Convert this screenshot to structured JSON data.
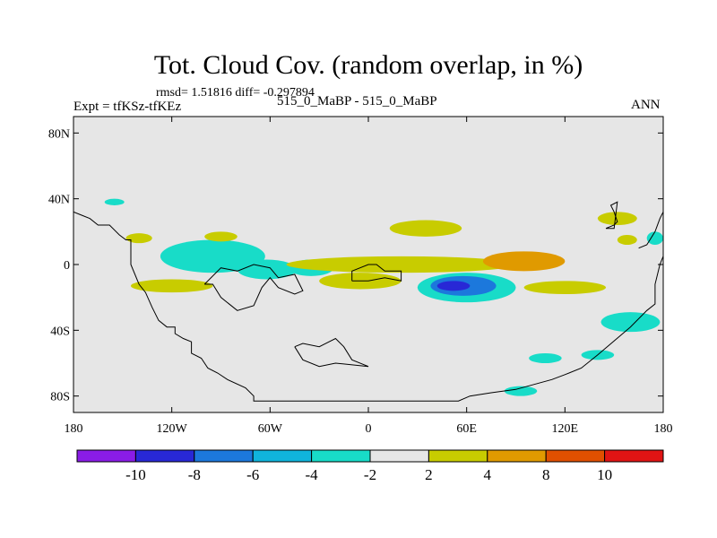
{
  "chart_data": {
    "type": "heatmap",
    "title": "Tot. Cloud Cov. (random overlap, in %)",
    "stats_text": "rmsd= 1.51816 diff= -0.297894",
    "left_label": "Expt = tfKSz-tfKEz",
    "center_label": "515_0_MaBP - 515_0_MaBP",
    "right_label": "ANN",
    "xlim": [
      -180,
      180
    ],
    "ylim": [
      -90,
      90
    ],
    "x_ticks": [
      {
        "value": -180,
        "label": "180"
      },
      {
        "value": -120,
        "label": "120W"
      },
      {
        "value": -60,
        "label": "60W"
      },
      {
        "value": 0,
        "label": "0"
      },
      {
        "value": 60,
        "label": "60E"
      },
      {
        "value": 120,
        "label": "120E"
      },
      {
        "value": 180,
        "label": "180"
      }
    ],
    "y_ticks": [
      {
        "value": 80,
        "label": "80N"
      },
      {
        "value": 40,
        "label": "40N"
      },
      {
        "value": 0,
        "label": "0"
      },
      {
        "value": -40,
        "label": "40S"
      },
      {
        "value": -80,
        "label": "80S"
      }
    ],
    "background_color": "#e6e6e6",
    "colorbar": {
      "colors": [
        "#8a1ce6",
        "#2828d6",
        "#1c78dc",
        "#10b4dc",
        "#18dcc8",
        "#e6e6e6",
        "#c8cc00",
        "#e09a00",
        "#e05000",
        "#e01414"
      ],
      "labels": [
        "-10",
        "-8",
        "-6",
        "-4",
        "-2",
        "2",
        "4",
        "8",
        "10"
      ]
    },
    "features": [
      {
        "name": "east-pacific-negative",
        "level": -3,
        "lon": -95,
        "lat": 5,
        "rx": 32,
        "ry": 10
      },
      {
        "name": "east-pacific-negative-tail",
        "level": -3,
        "lon": -62,
        "lat": -3,
        "rx": 18,
        "ry": 6
      },
      {
        "name": "central-atlantic-negative",
        "level": -3,
        "lon": -35,
        "lat": -2,
        "rx": 14,
        "ry": 5
      },
      {
        "name": "indian-ocean-negative",
        "level": -3,
        "lon": 60,
        "lat": -14,
        "rx": 30,
        "ry": 9
      },
      {
        "name": "indian-ocean-negative-core",
        "level": -5,
        "lon": 58,
        "lat": -13,
        "rx": 20,
        "ry": 6
      },
      {
        "name": "indian-ocean-negative-peak",
        "level": -7,
        "lon": 52,
        "lat": -13,
        "rx": 10,
        "ry": 3
      },
      {
        "name": "nw-pacific-negative",
        "level": -3,
        "lon": -155,
        "lat": 38,
        "rx": 6,
        "ry": 2
      },
      {
        "name": "north-atlantic-positive",
        "level": 3,
        "lon": 35,
        "lat": 22,
        "rx": 22,
        "ry": 5
      },
      {
        "name": "east-pacific-positive",
        "level": 3,
        "lon": -140,
        "lat": 16,
        "rx": 8,
        "ry": 3
      },
      {
        "name": "mid-pacific-positive",
        "level": 3,
        "lon": -90,
        "lat": 17,
        "rx": 10,
        "ry": 3
      },
      {
        "name": "eq-band-positive",
        "level": 3,
        "lon": 20,
        "lat": 0,
        "rx": 70,
        "ry": 5
      },
      {
        "name": "eq-south-positive",
        "level": 3,
        "lon": -120,
        "lat": -13,
        "rx": 25,
        "ry": 4
      },
      {
        "name": "african-positive",
        "level": 3,
        "lon": -5,
        "lat": -10,
        "rx": 25,
        "ry": 5
      },
      {
        "name": "arabian-positive",
        "level": 6,
        "lon": 95,
        "lat": 2,
        "rx": 25,
        "ry": 6
      },
      {
        "name": "indian-ocean-positive",
        "level": 3,
        "lon": 120,
        "lat": -14,
        "rx": 25,
        "ry": 4
      },
      {
        "name": "west-pacific-positive",
        "level": 3,
        "lon": 152,
        "lat": 28,
        "rx": 12,
        "ry": 4
      },
      {
        "name": "west-pacific-positive-2",
        "level": 3,
        "lon": 158,
        "lat": 15,
        "rx": 6,
        "ry": 3
      },
      {
        "name": "west-pacific-negative",
        "level": -3,
        "lon": 175,
        "lat": 16,
        "rx": 5,
        "ry": 4
      },
      {
        "name": "sw-pacific-negative",
        "level": -3,
        "lon": 160,
        "lat": -35,
        "rx": 18,
        "ry": 6
      },
      {
        "name": "south-ocean-negative",
        "level": -3,
        "lon": 108,
        "lat": -57,
        "rx": 10,
        "ry": 3
      },
      {
        "name": "south-ocean-negative-2",
        "level": -3,
        "lon": 140,
        "lat": -55,
        "rx": 10,
        "ry": 3
      },
      {
        "name": "antarctic-negative",
        "level": -3,
        "lon": 93,
        "lat": -77,
        "rx": 10,
        "ry": 3
      }
    ],
    "coastlines": [
      [
        [
          -180,
          32
        ],
        [
          -175,
          30
        ],
        [
          -170,
          28
        ],
        [
          -165,
          24
        ],
        [
          -158,
          24
        ],
        [
          -152,
          18
        ],
        [
          -148,
          15
        ],
        [
          -145,
          15
        ],
        [
          -145,
          0
        ],
        [
          -140,
          -12
        ],
        [
          -136,
          -17
        ],
        [
          -132,
          -26
        ],
        [
          -128,
          -34
        ],
        [
          -123,
          -38
        ],
        [
          -118,
          -38
        ],
        [
          -118,
          -42
        ],
        [
          -113,
          -45
        ],
        [
          -108,
          -47
        ],
        [
          -108,
          -54
        ],
        [
          -102,
          -57
        ],
        [
          -98,
          -63
        ],
        [
          -92,
          -66
        ],
        [
          -86,
          -70
        ],
        [
          -75,
          -75
        ],
        [
          -70,
          -80
        ],
        [
          -70,
          -83
        ],
        [
          -30,
          -83
        ],
        [
          0,
          -83
        ],
        [
          30,
          -83
        ],
        [
          55,
          -83
        ],
        [
          62,
          -80
        ],
        [
          75,
          -78
        ],
        [
          90,
          -76
        ],
        [
          112,
          -70
        ],
        [
          120,
          -67
        ],
        [
          130,
          -63
        ],
        [
          140,
          -55
        ],
        [
          160,
          -38
        ],
        [
          170,
          -28
        ],
        [
          175,
          -24
        ],
        [
          175,
          -12
        ],
        [
          178,
          0
        ],
        [
          180,
          5
        ]
      ],
      [
        [
          -100,
          -12
        ],
        [
          -95,
          -12
        ],
        [
          -90,
          -20
        ],
        [
          -80,
          -28
        ],
        [
          -70,
          -25
        ],
        [
          -65,
          -14
        ],
        [
          -60,
          -8
        ],
        [
          -55,
          -14
        ],
        [
          -45,
          -18
        ],
        [
          -40,
          -16
        ],
        [
          -45,
          -6
        ],
        [
          -55,
          -8
        ],
        [
          -60,
          -2
        ],
        [
          -70,
          0
        ],
        [
          -80,
          -4
        ],
        [
          -90,
          -2
        ],
        [
          -100,
          -12
        ]
      ],
      [
        [
          -10,
          -10
        ],
        [
          -10,
          -4
        ],
        [
          0,
          0
        ],
        [
          5,
          0
        ],
        [
          10,
          -4
        ],
        [
          20,
          -4
        ],
        [
          20,
          -10
        ],
        [
          10,
          -8
        ],
        [
          0,
          -10
        ],
        [
          -10,
          -10
        ]
      ],
      [
        [
          -45,
          -50
        ],
        [
          -40,
          -48
        ],
        [
          -30,
          -50
        ],
        [
          -20,
          -45
        ],
        [
          -15,
          -50
        ],
        [
          -10,
          -58
        ],
        [
          0,
          -62
        ],
        [
          -20,
          -60
        ],
        [
          -30,
          -62
        ],
        [
          -40,
          -58
        ],
        [
          -45,
          -50
        ]
      ],
      [
        [
          145,
          22
        ],
        [
          150,
          24
        ],
        [
          152,
          26
        ],
        [
          150,
          32
        ],
        [
          148,
          36
        ],
        [
          152,
          38
        ],
        [
          150,
          22
        ],
        [
          145,
          22
        ]
      ],
      [
        [
          165,
          10
        ],
        [
          170,
          12
        ],
        [
          175,
          20
        ],
        [
          178,
          28
        ],
        [
          180,
          32
        ]
      ]
    ]
  }
}
